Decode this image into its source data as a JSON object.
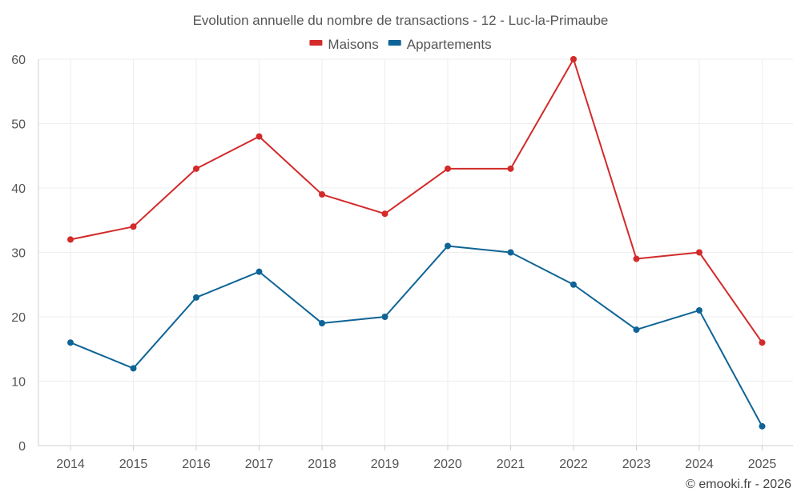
{
  "chart_data": {
    "type": "line",
    "title": "Evolution annuelle du nombre de transactions - 12 - Luc-la-Primaube",
    "categories": [
      "2014",
      "2015",
      "2016",
      "2017",
      "2018",
      "2019",
      "2020",
      "2021",
      "2022",
      "2023",
      "2024",
      "2025"
    ],
    "series": [
      {
        "name": "Maisons",
        "color": "#d32a2a",
        "values": [
          32,
          34,
          43,
          48,
          39,
          36,
          43,
          43,
          60,
          29,
          30,
          16
        ]
      },
      {
        "name": "Appartements",
        "color": "#0e6496",
        "values": [
          16,
          12,
          23,
          27,
          19,
          20,
          31,
          30,
          25,
          18,
          21,
          3
        ]
      }
    ],
    "yticks": [
      0,
      10,
      20,
      30,
      40,
      50,
      60
    ],
    "ylim": [
      0,
      60
    ],
    "legend": "top-center",
    "grid": true,
    "xlabel": "",
    "ylabel": ""
  },
  "credit": "© emooki.fr - 2026"
}
